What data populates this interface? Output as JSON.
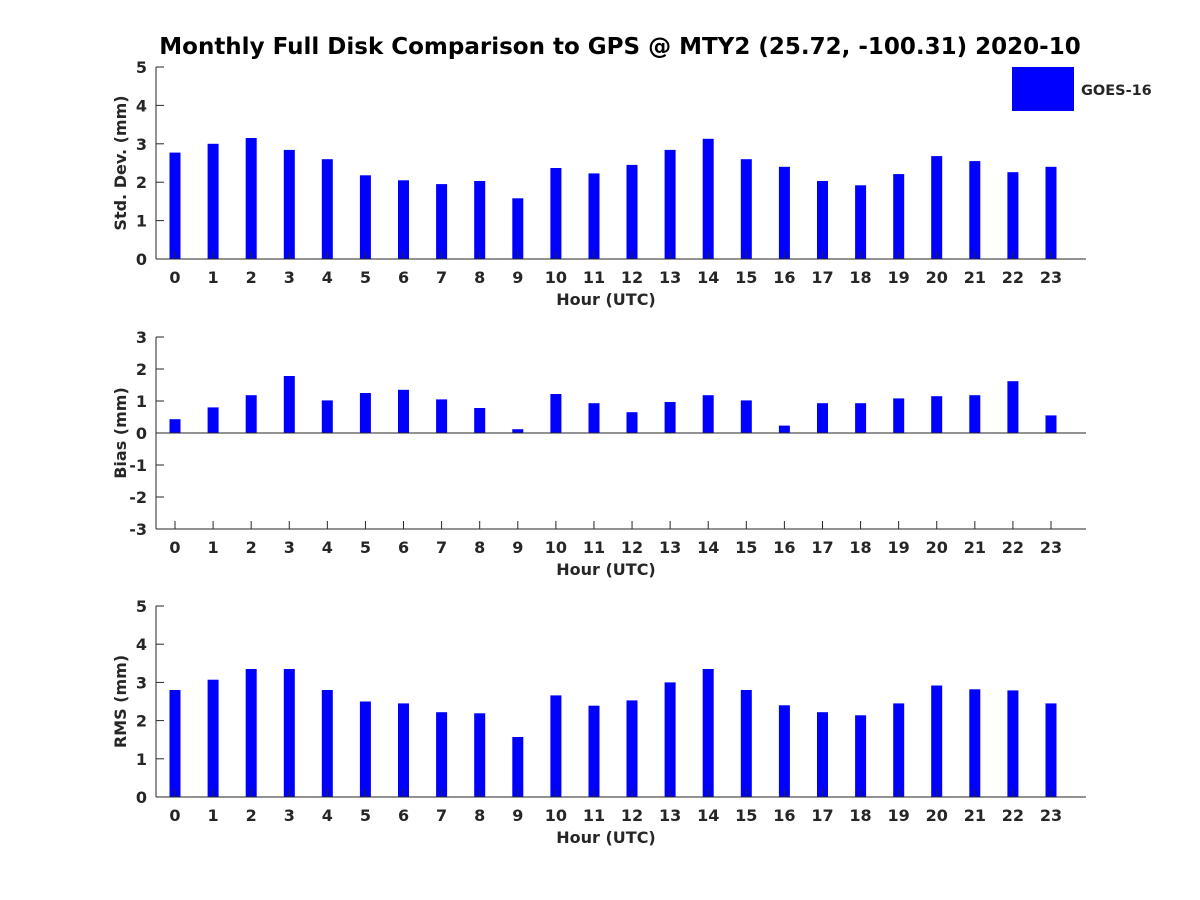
{
  "title": "Monthly Full Disk Comparison to GPS @ MTY2 (25.72, -100.31) 2020-10",
  "legend": {
    "label": "GOES-16",
    "color": "#0000ff",
    "position": "top-right"
  },
  "chart_data": [
    {
      "type": "bar",
      "title": "Monthly Full Disk Comparison to GPS @ MTY2 (25.72, -100.31) 2020-10",
      "xlabel": "Hour (UTC)",
      "ylabel": "Std. Dev. (mm)",
      "categories": [
        "0",
        "1",
        "2",
        "3",
        "4",
        "5",
        "6",
        "7",
        "8",
        "9",
        "10",
        "11",
        "12",
        "13",
        "14",
        "15",
        "16",
        "17",
        "18",
        "19",
        "20",
        "21",
        "22",
        "23"
      ],
      "series": [
        {
          "name": "GOES-16",
          "color": "#0000ff",
          "values": [
            2.77,
            3.0,
            3.15,
            2.84,
            2.6,
            2.18,
            2.05,
            1.95,
            2.03,
            1.58,
            2.37,
            2.23,
            2.45,
            2.84,
            3.13,
            2.6,
            2.4,
            2.03,
            1.92,
            2.21,
            2.68,
            2.55,
            2.26,
            2.4
          ]
        }
      ],
      "ylim": [
        0,
        5
      ],
      "yticks": [
        0,
        1,
        2,
        3,
        4,
        5
      ],
      "grid": false
    },
    {
      "type": "bar",
      "title": "",
      "xlabel": "Hour (UTC)",
      "ylabel": "Bias (mm)",
      "categories": [
        "0",
        "1",
        "2",
        "3",
        "4",
        "5",
        "6",
        "7",
        "8",
        "9",
        "10",
        "11",
        "12",
        "13",
        "14",
        "15",
        "16",
        "17",
        "18",
        "19",
        "20",
        "21",
        "22",
        "23"
      ],
      "series": [
        {
          "name": "GOES-16",
          "color": "#0000ff",
          "values": [
            0.43,
            0.8,
            1.18,
            1.78,
            1.02,
            1.25,
            1.35,
            1.05,
            0.78,
            0.12,
            1.22,
            0.93,
            0.65,
            0.97,
            1.18,
            1.02,
            0.23,
            0.93,
            0.93,
            1.08,
            1.15,
            1.18,
            1.62,
            0.55
          ]
        }
      ],
      "ylim": [
        -3,
        3
      ],
      "yticks": [
        -3,
        -2,
        -1,
        0,
        1,
        2,
        3
      ],
      "grid": false
    },
    {
      "type": "bar",
      "title": "",
      "xlabel": "Hour (UTC)",
      "ylabel": "RMS (mm)",
      "categories": [
        "0",
        "1",
        "2",
        "3",
        "4",
        "5",
        "6",
        "7",
        "8",
        "9",
        "10",
        "11",
        "12",
        "13",
        "14",
        "15",
        "16",
        "17",
        "18",
        "19",
        "20",
        "21",
        "22",
        "23"
      ],
      "series": [
        {
          "name": "GOES-16",
          "color": "#0000ff",
          "values": [
            2.8,
            3.07,
            3.35,
            3.35,
            2.8,
            2.5,
            2.45,
            2.22,
            2.19,
            1.57,
            2.66,
            2.39,
            2.53,
            3.0,
            3.35,
            2.8,
            2.4,
            2.22,
            2.14,
            2.45,
            2.92,
            2.82,
            2.79,
            2.45
          ]
        }
      ],
      "ylim": [
        0,
        5
      ],
      "yticks": [
        0,
        1,
        2,
        3,
        4,
        5
      ],
      "grid": false
    }
  ]
}
